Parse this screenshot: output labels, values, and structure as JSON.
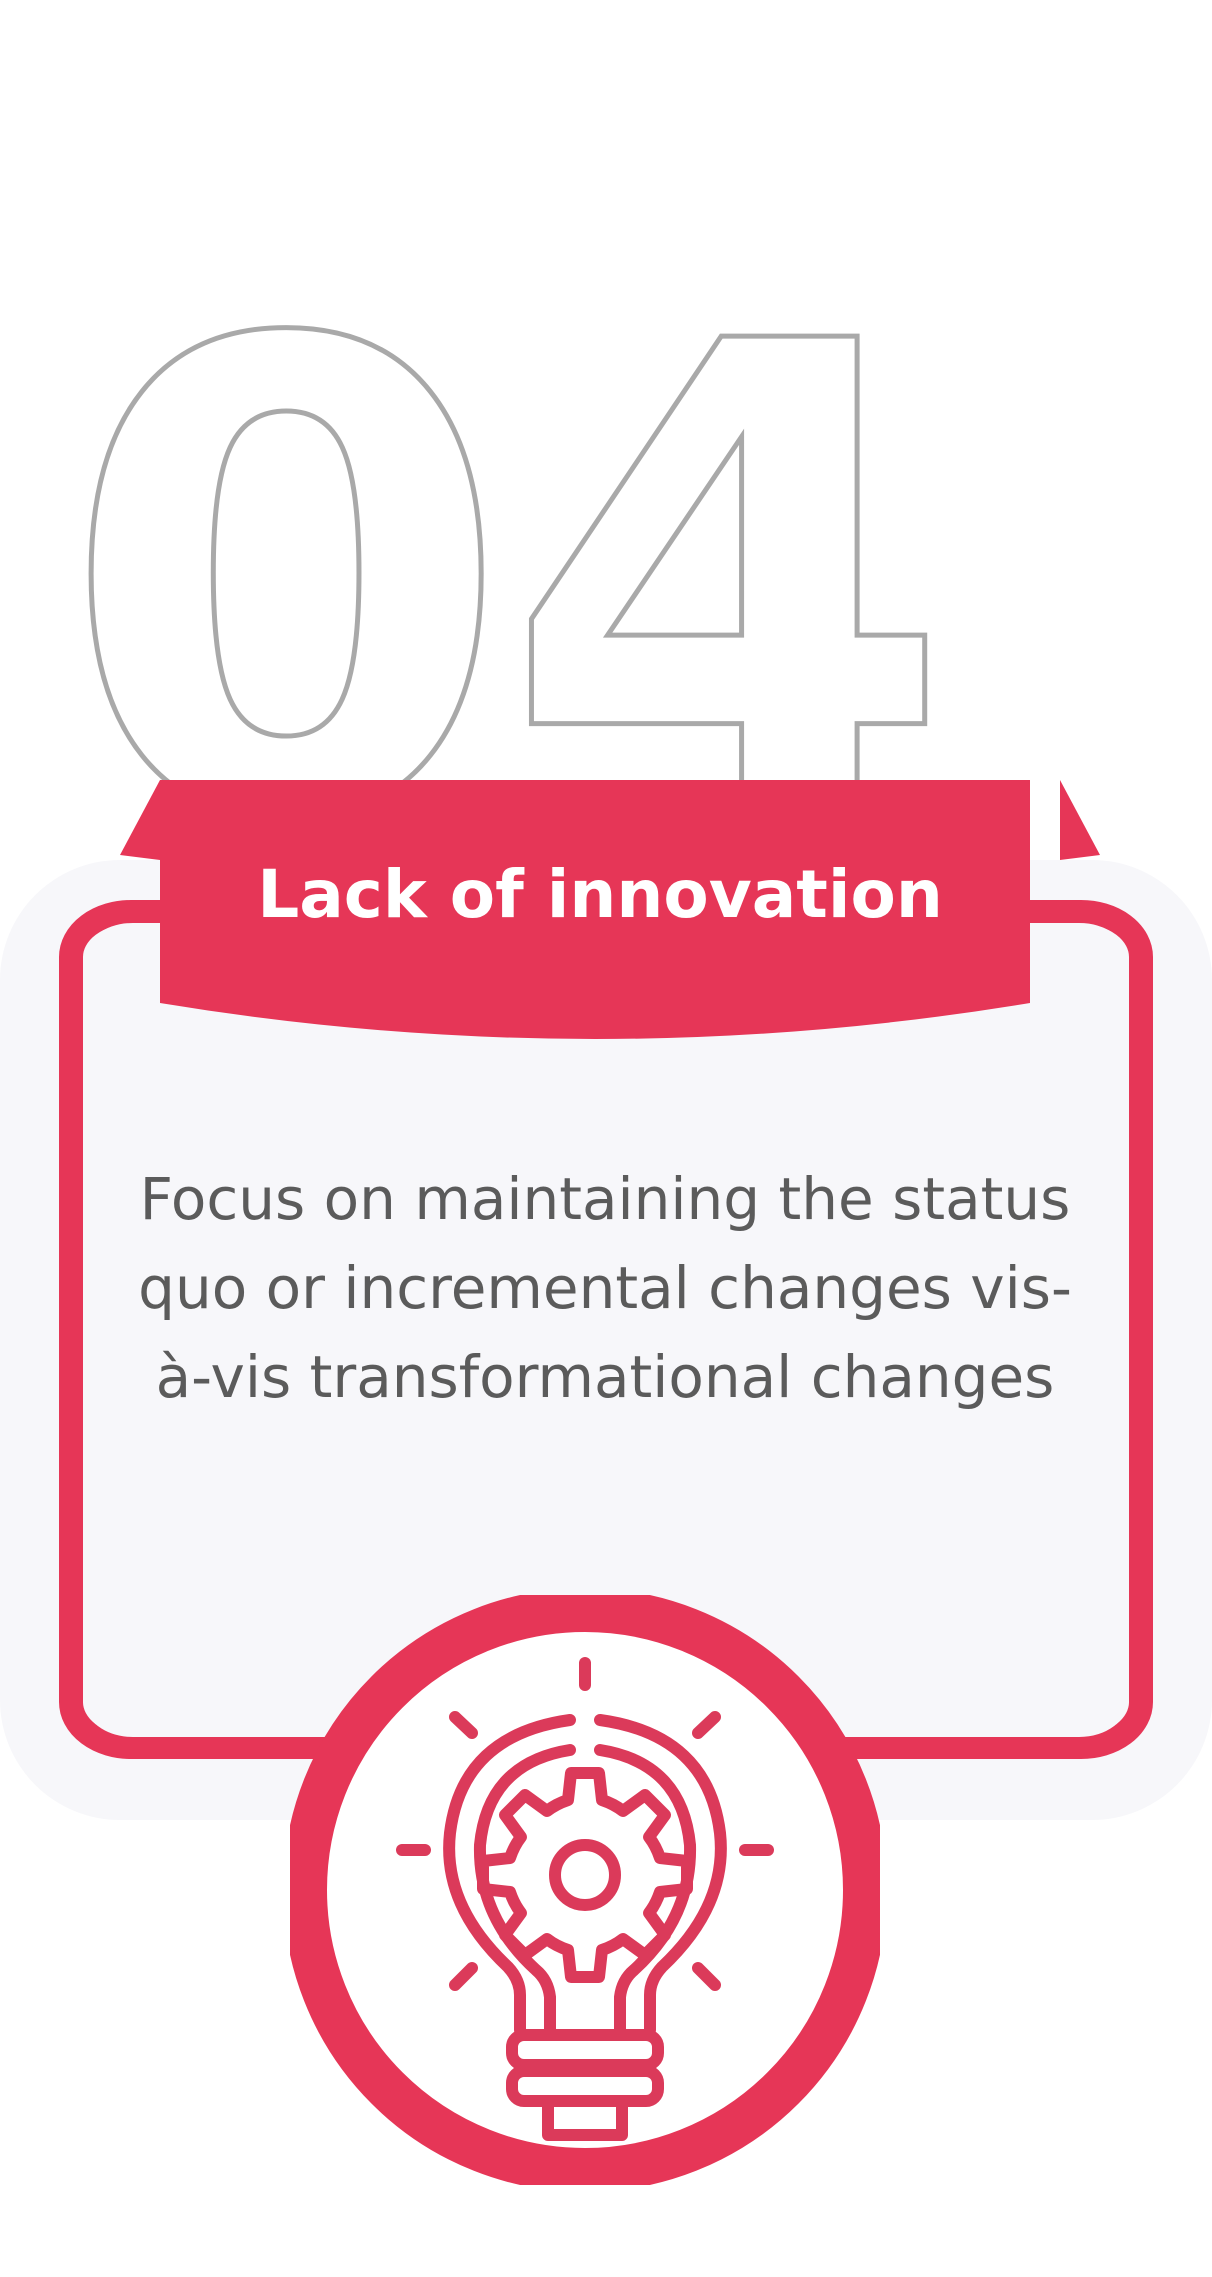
{
  "step": {
    "number": "04",
    "title": "Lack of innovation",
    "description": "Focus on maintaining the status quo or incremental changes vis-à-vis transformational changes",
    "icon": "lightbulb-gear-icon"
  },
  "colors": {
    "accent": "#E63657",
    "card_background": "#F7F7FA",
    "number_outline": "#A9A9A9",
    "text": "#5B5B5B",
    "title_text": "#FFFFFF"
  }
}
